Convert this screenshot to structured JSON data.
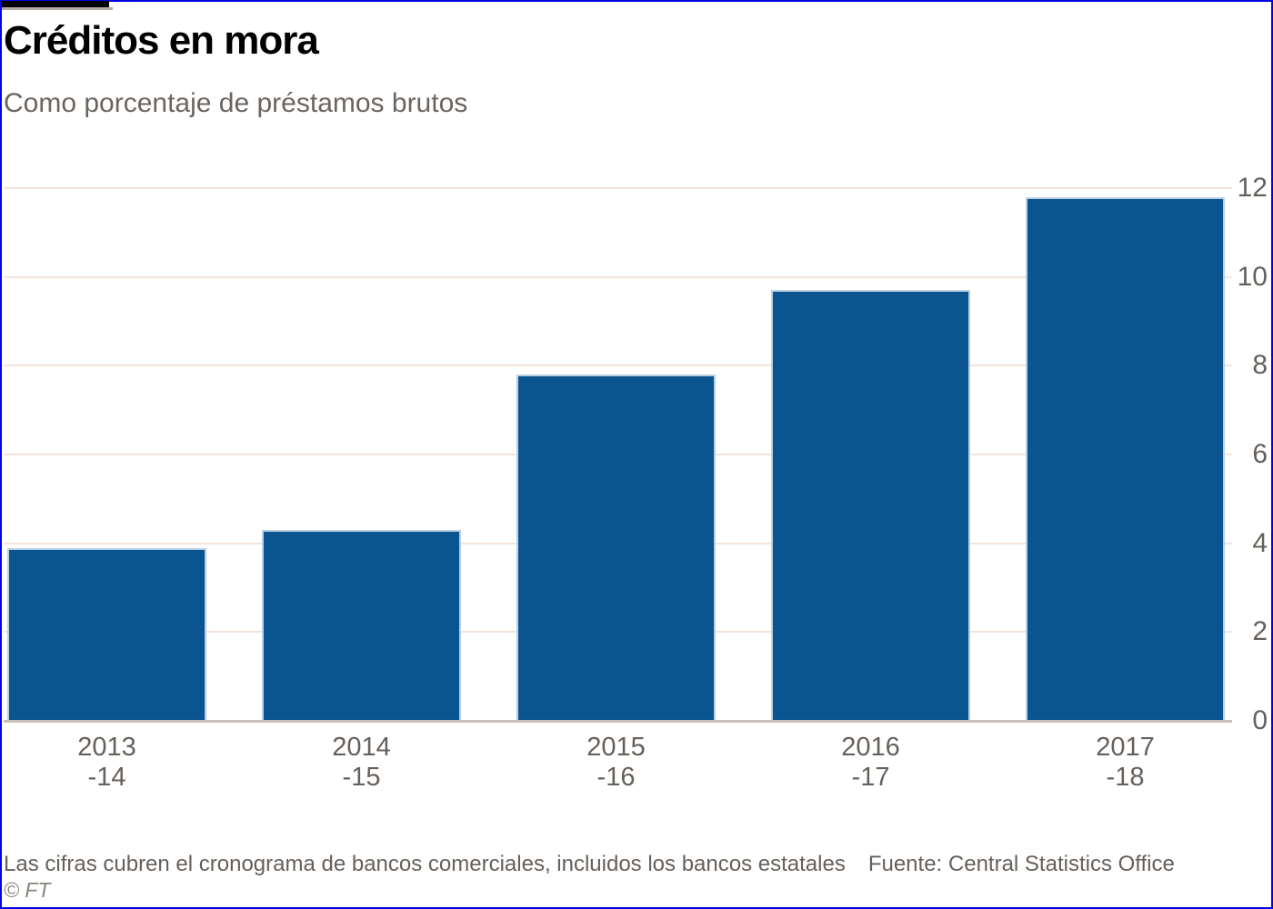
{
  "header": {
    "title": "Créditos en mora",
    "subtitle": "Como porcentaje de préstamos brutos"
  },
  "chart_data": {
    "type": "bar",
    "title": "Créditos en mora",
    "subtitle": "Como porcentaje de préstamos brutos",
    "categories": [
      "2013-14",
      "2014-15",
      "2015-16",
      "2016-17",
      "2017-18"
    ],
    "x_tick_lines": [
      [
        "2013",
        "-14"
      ],
      [
        "2014",
        "-15"
      ],
      [
        "2015",
        "-16"
      ],
      [
        "2016",
        "-17"
      ],
      [
        "2017",
        "-18"
      ]
    ],
    "values": [
      3.9,
      4.3,
      7.8,
      9.7,
      11.8
    ],
    "xlabel": "",
    "ylabel": "",
    "ylim": [
      0,
      12
    ],
    "yticks": [
      0,
      2,
      4,
      6,
      8,
      10,
      12
    ],
    "y_axis_side": "right",
    "grid": "horizontal",
    "legend": "none",
    "bar_color": "#0a5590"
  },
  "footer": {
    "note": "Las cifras cubren el cronograma de bancos comerciales, incluidos los bancos estatales",
    "source": "Fuente: Central Statistics Office",
    "copyright": "© FT"
  },
  "colors": {
    "bar": "#0a5590",
    "bar_edge": "#b9d0e3",
    "border": "#0202e8",
    "gridline": "#f5e3db",
    "baseline": "#ccc1b8",
    "axis_text": "#66605b",
    "title": "#000000",
    "subtitle_text": "#6b6560",
    "copyright_text": "#8a847e",
    "tab_black": "#000000",
    "tab_shadow": "#b3aca6"
  }
}
